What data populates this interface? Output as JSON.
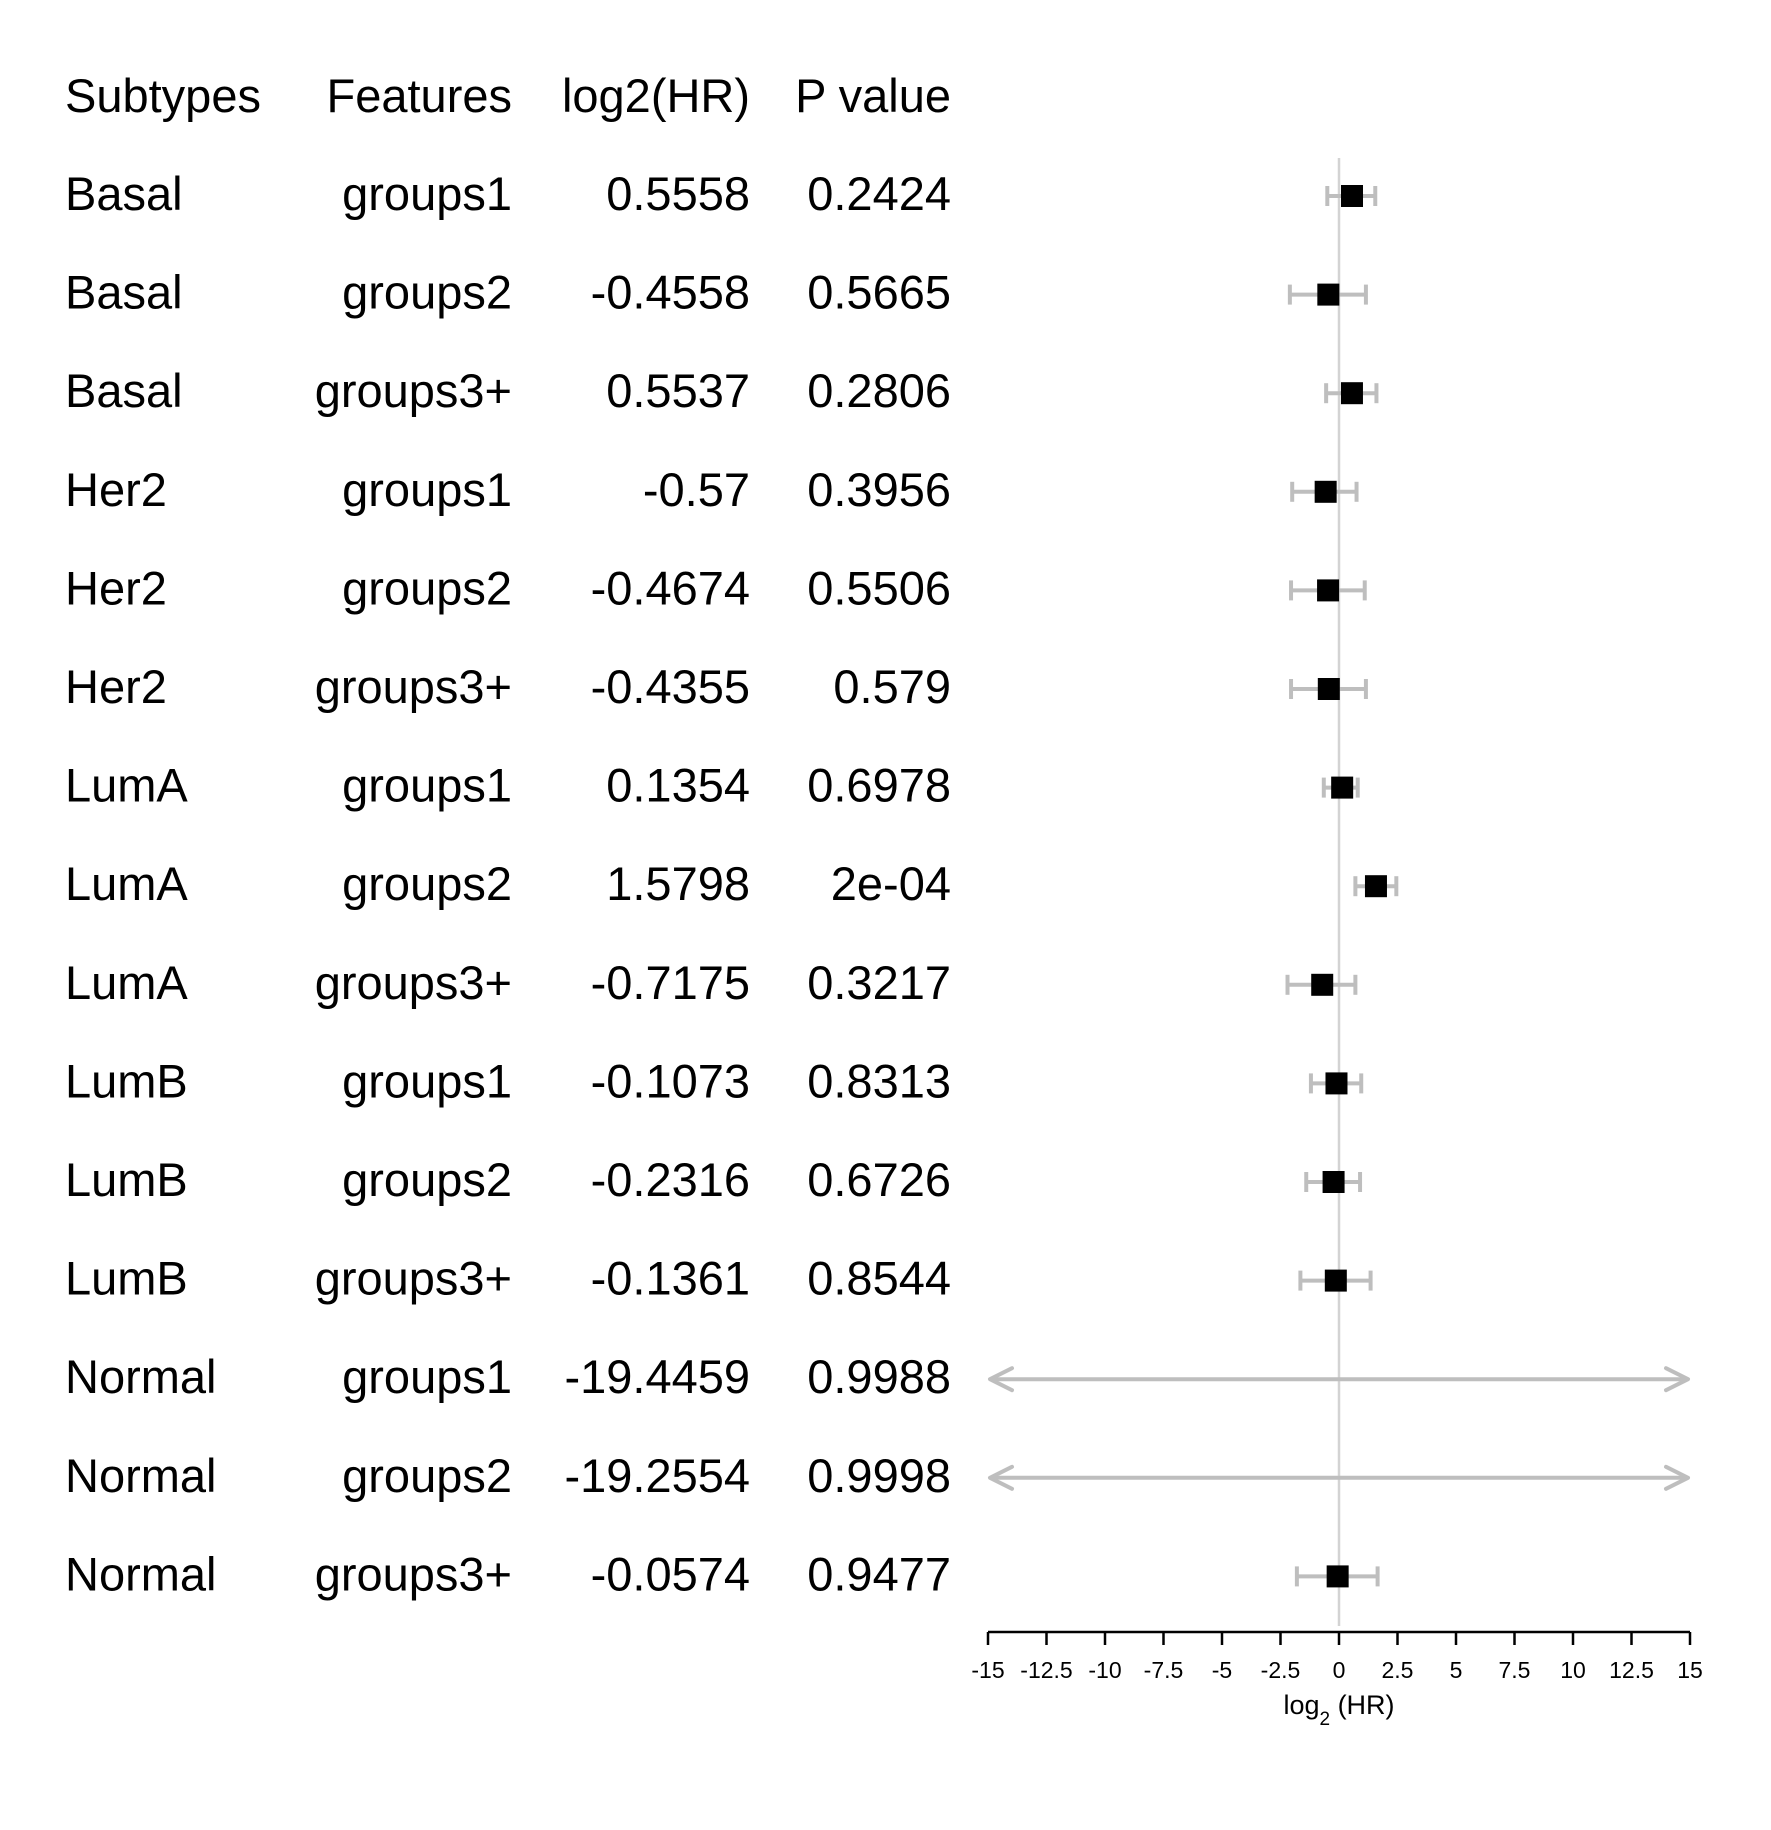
{
  "chart_data": {
    "type": "forest",
    "columns": [
      {
        "key": "subtype",
        "header": "Subtypes"
      },
      {
        "key": "feature",
        "header": "Features"
      },
      {
        "key": "log2hr_label",
        "header": "log2(HR)"
      },
      {
        "key": "p_label",
        "header": "P value"
      }
    ],
    "rows": [
      {
        "subtype": "Basal",
        "feature": "groups1",
        "log2hr_label": "0.5558",
        "p_label": "0.2424",
        "est": 0.5558,
        "lo": -0.5,
        "hi": 1.55
      },
      {
        "subtype": "Basal",
        "feature": "groups2",
        "log2hr_label": "-0.4558",
        "p_label": "0.5665",
        "est": -0.4558,
        "lo": -2.1,
        "hi": 1.15
      },
      {
        "subtype": "Basal",
        "feature": "groups3+",
        "log2hr_label": "0.5537",
        "p_label": "0.2806",
        "est": 0.5537,
        "lo": -0.55,
        "hi": 1.6
      },
      {
        "subtype": "Her2",
        "feature": "groups1",
        "log2hr_label": "-0.57",
        "p_label": "0.3956",
        "est": -0.57,
        "lo": -2.0,
        "hi": 0.75
      },
      {
        "subtype": "Her2",
        "feature": "groups2",
        "log2hr_label": "-0.4674",
        "p_label": "0.5506",
        "est": -0.4674,
        "lo": -2.05,
        "hi": 1.1
      },
      {
        "subtype": "Her2",
        "feature": "groups3+",
        "log2hr_label": "-0.4355",
        "p_label": "0.579",
        "est": -0.4355,
        "lo": -2.05,
        "hi": 1.15
      },
      {
        "subtype": "LumA",
        "feature": "groups1",
        "log2hr_label": "0.1354",
        "p_label": "0.6978",
        "est": 0.1354,
        "lo": -0.65,
        "hi": 0.8
      },
      {
        "subtype": "LumA",
        "feature": "groups2",
        "log2hr_label": "1.5798",
        "p_label": "2e-04",
        "est": 1.5798,
        "lo": 0.7,
        "hi": 2.45
      },
      {
        "subtype": "LumA",
        "feature": "groups3+",
        "log2hr_label": "-0.7175",
        "p_label": "0.3217",
        "est": -0.7175,
        "lo": -2.2,
        "hi": 0.7
      },
      {
        "subtype": "LumB",
        "feature": "groups1",
        "log2hr_label": "-0.1073",
        "p_label": "0.8313",
        "est": -0.1073,
        "lo": -1.2,
        "hi": 0.95
      },
      {
        "subtype": "LumB",
        "feature": "groups2",
        "log2hr_label": "-0.2316",
        "p_label": "0.6726",
        "est": -0.2316,
        "lo": -1.4,
        "hi": 0.9
      },
      {
        "subtype": "LumB",
        "feature": "groups3+",
        "log2hr_label": "-0.1361",
        "p_label": "0.8544",
        "est": -0.1361,
        "lo": -1.65,
        "hi": 1.35
      },
      {
        "subtype": "Normal",
        "feature": "groups1",
        "log2hr_label": "-19.4459",
        "p_label": "0.9988",
        "est": -19.4459,
        "lo": -15,
        "hi": 15,
        "clipped": true
      },
      {
        "subtype": "Normal",
        "feature": "groups2",
        "log2hr_label": "-19.2554",
        "p_label": "0.9998",
        "est": -19.2554,
        "lo": -15,
        "hi": 15,
        "clipped": true
      },
      {
        "subtype": "Normal",
        "feature": "groups3+",
        "log2hr_label": "-0.0574",
        "p_label": "0.9477",
        "est": -0.0574,
        "lo": -1.8,
        "hi": 1.65
      }
    ],
    "xlim": [
      -15,
      15
    ],
    "xticks": [
      -15,
      -12.5,
      -10,
      -7.5,
      -5,
      -2.5,
      0,
      2.5,
      5,
      7.5,
      10,
      12.5,
      15
    ],
    "xtick_labels": [
      "-15",
      "-12.5",
      "-10",
      "-7.5",
      "-5",
      "-2.5",
      "0",
      "2.5",
      "5",
      "7.5",
      "10",
      "12.5",
      "15"
    ],
    "xlabel_main": "log",
    "xlabel_sub": "2",
    "xlabel_tail": " (HR)",
    "reference_line": 0,
    "colors": {
      "point": "#000000",
      "ci": "#bebebe",
      "refline": "#d3d3d3",
      "axis": "#000000",
      "text": "#000000"
    }
  }
}
